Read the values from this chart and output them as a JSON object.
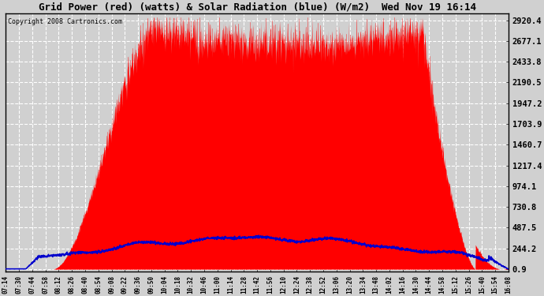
{
  "title": "Grid Power (red) (watts) & Solar Radiation (blue) (W/m2)  Wed Nov 19 16:14",
  "copyright": "Copyright 2008 Cartronics.com",
  "background_color": "#d0d0d0",
  "plot_bg_color": "#d0d0d0",
  "grid_color": "#b0b0b0",
  "red_color": "#ff0000",
  "blue_color": "#0000cc",
  "y_ticks": [
    0.9,
    244.2,
    487.5,
    730.8,
    974.1,
    1217.4,
    1460.7,
    1703.9,
    1947.2,
    2190.5,
    2433.8,
    2677.1,
    2920.4
  ],
  "y_min": 0.9,
  "y_max": 2920.4,
  "x_labels": [
    "07:14",
    "07:30",
    "07:44",
    "07:58",
    "08:12",
    "08:26",
    "08:40",
    "08:54",
    "09:08",
    "09:22",
    "09:36",
    "09:50",
    "10:04",
    "10:18",
    "10:32",
    "10:46",
    "11:00",
    "11:14",
    "11:28",
    "11:42",
    "11:56",
    "12:10",
    "12:24",
    "12:38",
    "12:52",
    "13:06",
    "13:20",
    "13:34",
    "13:48",
    "14:02",
    "14:16",
    "14:30",
    "14:44",
    "14:58",
    "15:12",
    "15:26",
    "15:40",
    "15:54",
    "16:08"
  ]
}
